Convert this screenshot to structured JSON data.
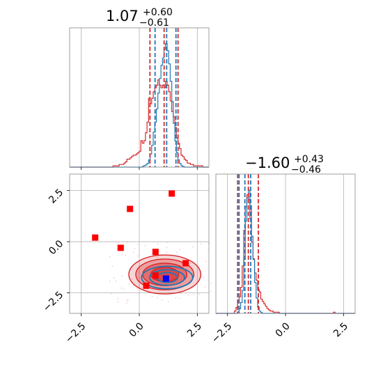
{
  "chart_data": {
    "type": "corner",
    "params": [
      {
        "title_main": "1.07",
        "title_plus": "+0.60",
        "title_minus": "−0.61",
        "quantiles_red": [
          0.46,
          1.07,
          1.67
        ],
        "quantiles_blue": [
          0.68,
          1.18,
          1.58
        ]
      },
      {
        "title_main": "−1.60",
        "title_plus": "+0.43",
        "title_minus": "−0.46",
        "quantiles_red": [
          -2.06,
          -1.6,
          -1.17
        ],
        "quantiles_blue": [
          -2.0,
          -1.75,
          -1.5
        ]
      }
    ],
    "xlim": [
      -3.0,
      3.0
    ],
    "ylim_2d": [
      -3.5,
      3.3
    ],
    "tick_labels": [
      "−2.5",
      "0.0",
      "2.5"
    ],
    "tick_values": [
      -2.5,
      0.0,
      2.5
    ],
    "hist1": {
      "edges": [
        -3.0,
        2.8
      ],
      "red": [
        0,
        0,
        0,
        0,
        0,
        0,
        0,
        0,
        0,
        0,
        0,
        0,
        0,
        0,
        0,
        0,
        0,
        0,
        0,
        0,
        0,
        0,
        0,
        0,
        0,
        0,
        0,
        0,
        1,
        1,
        1,
        1,
        2,
        2,
        2,
        3,
        4,
        6,
        6,
        7,
        8,
        9,
        9,
        10,
        11,
        12,
        20,
        18,
        20,
        26,
        34,
        52,
        48,
        52,
        57,
        60,
        62,
        66,
        62,
        60,
        62,
        60,
        65,
        62,
        57,
        50,
        42,
        38,
        30,
        22,
        18,
        14,
        9,
        8,
        6,
        5,
        3,
        3,
        2,
        2,
        1,
        1,
        1,
        1,
        1,
        1,
        0,
        0,
        0,
        0
      ],
      "blue": [
        0,
        0,
        0,
        0,
        0,
        0,
        0,
        0,
        0,
        0,
        0,
        0,
        0,
        0,
        0,
        0,
        0,
        0,
        0,
        0,
        0,
        0,
        0,
        0,
        0,
        0,
        0,
        0,
        0,
        0,
        0,
        0,
        0,
        0,
        0,
        0,
        0,
        0,
        0,
        0,
        0,
        0,
        0,
        0,
        0,
        0,
        0,
        1,
        2,
        3,
        5,
        10,
        18,
        30,
        48,
        62,
        80,
        102,
        122,
        140,
        150,
        162,
        170,
        160,
        142,
        118,
        90,
        60,
        36,
        20,
        10,
        5,
        2,
        1,
        0,
        0,
        0,
        0,
        0,
        0,
        0,
        0,
        0,
        0,
        0,
        0,
        0,
        0,
        0,
        0
      ],
      "max": 180
    },
    "hist2": {
      "red": [
        0,
        0,
        0,
        0,
        0,
        0,
        0,
        0,
        0,
        0,
        0,
        0,
        2,
        5,
        10,
        14,
        22,
        40,
        70,
        90,
        100,
        96,
        80,
        60,
        46,
        34,
        28,
        20,
        18,
        12,
        10,
        8,
        6,
        4,
        3,
        2,
        2,
        1,
        1,
        1,
        1,
        0,
        0,
        0,
        0,
        0,
        0,
        0,
        0,
        0,
        0,
        0,
        0,
        0,
        0,
        0,
        0,
        0,
        0,
        0,
        0,
        0,
        0,
        0,
        0,
        0,
        0,
        0,
        0,
        0,
        0,
        0,
        0,
        0,
        0,
        0,
        1,
        0,
        0,
        0,
        0,
        0,
        0,
        0,
        0,
        0,
        0,
        0,
        0,
        0
      ],
      "blue": [
        0,
        0,
        0,
        0,
        0,
        0,
        0,
        0,
        0,
        0,
        0,
        0,
        0,
        0,
        2,
        6,
        14,
        30,
        70,
        120,
        150,
        160,
        140,
        100,
        70,
        40,
        20,
        8,
        3,
        1,
        0,
        0,
        0,
        0,
        0,
        0,
        0,
        0,
        0,
        0,
        0,
        0,
        0,
        0,
        0,
        0,
        0,
        0,
        0,
        0,
        0,
        0,
        0,
        0,
        0,
        0,
        0,
        0,
        0,
        0,
        0,
        0,
        0,
        0,
        0,
        0,
        0,
        0,
        0,
        0,
        0,
        0,
        0,
        0,
        0,
        0,
        0,
        0,
        0,
        0,
        0,
        0,
        0,
        0,
        0,
        0,
        0,
        0,
        0,
        0
      ],
      "max": 170
    },
    "red_points": [
      [
        -1.9,
        0.2
      ],
      [
        -0.8,
        -0.3
      ],
      [
        -0.4,
        1.6
      ],
      [
        1.4,
        2.35
      ],
      [
        0.7,
        -0.5
      ],
      [
        2.0,
        -1.05
      ],
      [
        0.7,
        -1.65
      ],
      [
        0.3,
        -2.15
      ]
    ],
    "blue_point": [
      1.15,
      -1.8
    ],
    "colors": {
      "red": "#d62728",
      "blue": "#1f77b4",
      "marker_red": "#ff0000",
      "marker_blue": "#0000ff",
      "grid": "#b0b0b0"
    }
  }
}
